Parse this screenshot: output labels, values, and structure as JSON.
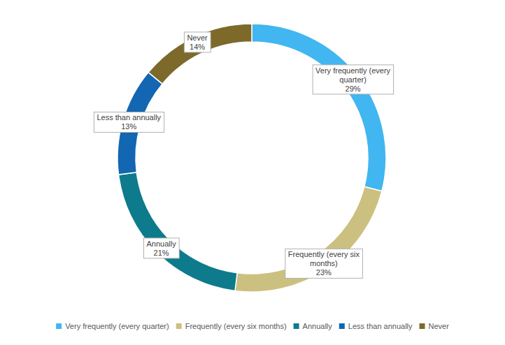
{
  "chart_data": {
    "type": "donut",
    "categories": [
      "Very frequently (every quarter)",
      "Frequently (every six months)",
      "Annually",
      "Less than annually",
      "Never"
    ],
    "values": [
      29,
      23,
      21,
      13,
      14
    ],
    "value_labels": [
      "29%",
      "23%",
      "21%",
      "13%",
      "14%"
    ],
    "colors": [
      "#41b6f0",
      "#cbc07f",
      "#0d7b8c",
      "#1266b2",
      "#7d6a2b"
    ],
    "data_labels": true,
    "legend": "bottom"
  }
}
